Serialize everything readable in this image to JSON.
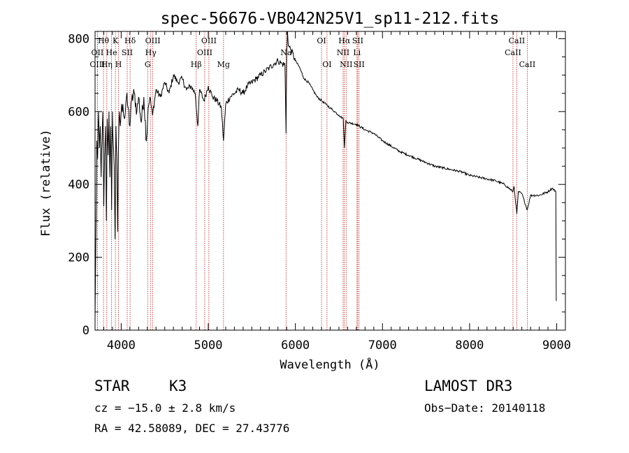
{
  "chart_data": {
    "type": "line",
    "title": "spec-56676-VB042N25V1_sp11-212.fits",
    "xlabel": "Wavelength (Å)",
    "ylabel": "Flux (relative)",
    "xlim": [
      3700,
      9100
    ],
    "ylim": [
      0,
      820
    ],
    "xticks": [
      4000,
      5000,
      6000,
      7000,
      8000,
      9000
    ],
    "yticks": [
      0,
      200,
      400,
      600,
      800
    ],
    "grid": false,
    "series": [
      {
        "name": "flux",
        "points": [
          [
            3700,
            30
          ],
          [
            3710,
            250
          ],
          [
            3720,
            520
          ],
          [
            3730,
            470
          ],
          [
            3740,
            600
          ],
          [
            3750,
            500
          ],
          [
            3760,
            560
          ],
          [
            3770,
            420
          ],
          [
            3780,
            520
          ],
          [
            3790,
            600
          ],
          [
            3800,
            340
          ],
          [
            3810,
            480
          ],
          [
            3820,
            560
          ],
          [
            3830,
            300
          ],
          [
            3840,
            580
          ],
          [
            3850,
            480
          ],
          [
            3860,
            600
          ],
          [
            3870,
            420
          ],
          [
            3880,
            560
          ],
          [
            3890,
            330
          ],
          [
            3900,
            600
          ],
          [
            3910,
            510
          ],
          [
            3920,
            450
          ],
          [
            3930,
            250
          ],
          [
            3940,
            560
          ],
          [
            3950,
            480
          ],
          [
            3960,
            270
          ],
          [
            3970,
            520
          ],
          [
            3980,
            600
          ],
          [
            3990,
            560
          ],
          [
            4000,
            600
          ],
          [
            4020,
            620
          ],
          [
            4040,
            580
          ],
          [
            4060,
            640
          ],
          [
            4080,
            610
          ],
          [
            4100,
            560
          ],
          [
            4120,
            630
          ],
          [
            4150,
            650
          ],
          [
            4180,
            600
          ],
          [
            4200,
            640
          ],
          [
            4230,
            570
          ],
          [
            4260,
            640
          ],
          [
            4290,
            520
          ],
          [
            4310,
            610
          ],
          [
            4330,
            640
          ],
          [
            4360,
            590
          ],
          [
            4400,
            660
          ],
          [
            4450,
            640
          ],
          [
            4500,
            680
          ],
          [
            4550,
            650
          ],
          [
            4600,
            700
          ],
          [
            4650,
            680
          ],
          [
            4700,
            690
          ],
          [
            4750,
            660
          ],
          [
            4800,
            670
          ],
          [
            4850,
            650
          ],
          [
            4880,
            560
          ],
          [
            4900,
            660
          ],
          [
            4950,
            630
          ],
          [
            5000,
            670
          ],
          [
            5050,
            640
          ],
          [
            5100,
            630
          ],
          [
            5150,
            610
          ],
          [
            5175,
            520
          ],
          [
            5200,
            620
          ],
          [
            5250,
            640
          ],
          [
            5300,
            650
          ],
          [
            5350,
            660
          ],
          [
            5400,
            650
          ],
          [
            5450,
            670
          ],
          [
            5500,
            680
          ],
          [
            5550,
            690
          ],
          [
            5600,
            700
          ],
          [
            5650,
            710
          ],
          [
            5700,
            720
          ],
          [
            5750,
            730
          ],
          [
            5800,
            740
          ],
          [
            5850,
            730
          ],
          [
            5880,
            730
          ],
          [
            5893,
            540
          ],
          [
            5900,
            760
          ],
          [
            5910,
            820
          ],
          [
            5920,
            780
          ],
          [
            5950,
            770
          ],
          [
            6000,
            740
          ],
          [
            6050,
            720
          ],
          [
            6100,
            690
          ],
          [
            6150,
            680
          ],
          [
            6200,
            660
          ],
          [
            6250,
            640
          ],
          [
            6300,
            630
          ],
          [
            6350,
            620
          ],
          [
            6400,
            610
          ],
          [
            6450,
            600
          ],
          [
            6500,
            590
          ],
          [
            6550,
            580
          ],
          [
            6563,
            500
          ],
          [
            6580,
            575
          ],
          [
            6600,
            570
          ],
          [
            6700,
            565
          ],
          [
            6800,
            550
          ],
          [
            6900,
            540
          ],
          [
            7000,
            520
          ],
          [
            7100,
            505
          ],
          [
            7200,
            490
          ],
          [
            7300,
            480
          ],
          [
            7400,
            470
          ],
          [
            7500,
            460
          ],
          [
            7600,
            450
          ],
          [
            7700,
            445
          ],
          [
            7800,
            440
          ],
          [
            7900,
            435
          ],
          [
            8000,
            425
          ],
          [
            8100,
            420
          ],
          [
            8200,
            415
          ],
          [
            8300,
            410
          ],
          [
            8400,
            400
          ],
          [
            8498,
            380
          ],
          [
            8510,
            395
          ],
          [
            8542,
            320
          ],
          [
            8560,
            380
          ],
          [
            8600,
            375
          ],
          [
            8662,
            330
          ],
          [
            8700,
            370
          ],
          [
            8800,
            370
          ],
          [
            8900,
            380
          ],
          [
            8950,
            390
          ],
          [
            8990,
            380
          ],
          [
            8995,
            80
          ]
        ]
      }
    ],
    "lines": [
      {
        "label": "Hθ",
        "wave": 3797,
        "row": 1
      },
      {
        "label": "OII",
        "wave": 3727,
        "row": 2
      },
      {
        "label": "OIII",
        "wave": 3727,
        "row": 3
      },
      {
        "label": "K",
        "wave": 3934,
        "row": 1
      },
      {
        "label": "H",
        "wave": 3969,
        "row": 3
      },
      {
        "label": "Hδ",
        "wave": 4102,
        "row": 1
      },
      {
        "label": "He",
        "wave": 3889,
        "row": 2
      },
      {
        "label": "Hη",
        "wave": 3835,
        "row": 3
      },
      {
        "label": "SII",
        "wave": 4069,
        "row": 2
      },
      {
        "label": "OIII",
        "wave": 4363,
        "row": 1
      },
      {
        "label": "Hγ",
        "wave": 4340,
        "row": 2
      },
      {
        "label": "G",
        "wave": 4304,
        "row": 3
      },
      {
        "label": "OIII",
        "wave": 5007,
        "row": 1
      },
      {
        "label": "OIII",
        "wave": 4959,
        "row": 2
      },
      {
        "label": "Hβ",
        "wave": 4861,
        "row": 3
      },
      {
        "label": "Mg",
        "wave": 5175,
        "row": 3
      },
      {
        "label": "Na",
        "wave": 5893,
        "row": 2
      },
      {
        "label": "OI",
        "wave": 6300,
        "row": 1
      },
      {
        "label": "OI",
        "wave": 6363,
        "row": 3
      },
      {
        "label": "Hα",
        "wave": 6563,
        "row": 1
      },
      {
        "label": "NII",
        "wave": 6548,
        "row": 2
      },
      {
        "label": "NII",
        "wave": 6583,
        "row": 3
      },
      {
        "label": "SII",
        "wave": 6716,
        "row": 1
      },
      {
        "label": "Li",
        "wave": 6707,
        "row": 2
      },
      {
        "label": "SII",
        "wave": 6731,
        "row": 3
      },
      {
        "label": "CaII",
        "wave": 8542,
        "row": 1
      },
      {
        "label": "CaII",
        "wave": 8498,
        "row": 2
      },
      {
        "label": "CaII",
        "wave": 8662,
        "row": 3
      }
    ]
  },
  "info": {
    "class": "STAR",
    "subclass": "K3",
    "survey": "LAMOST DR3",
    "cz": "cz = −15.0 ± 2.8 km/s",
    "obs_date": "Obs−Date: 20140118",
    "coords": "RA =  42.58089, DEC =  27.43776"
  }
}
